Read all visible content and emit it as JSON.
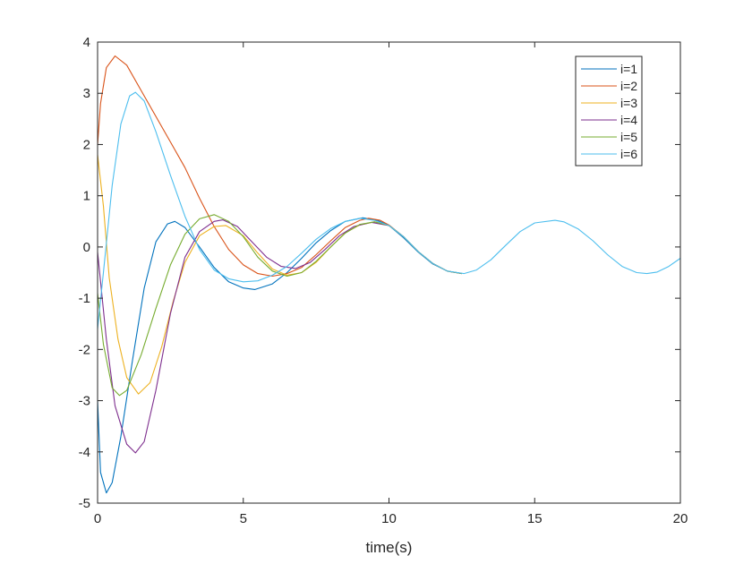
{
  "chart_data": {
    "type": "line",
    "title": "",
    "xlabel": "time(s)",
    "ylabel": "",
    "xlim": [
      0,
      20
    ],
    "ylim": [
      -5,
      4
    ],
    "xticks": [
      0,
      5,
      10,
      15,
      20
    ],
    "yticks": [
      -5,
      -4,
      -3,
      -2,
      -1,
      0,
      1,
      2,
      3,
      4
    ],
    "grid": false,
    "legend_position": "top-right",
    "series": [
      {
        "name": "i=1",
        "color": "#0072BD",
        "points": [
          [
            0,
            -3.0
          ],
          [
            0.1,
            -4.4
          ],
          [
            0.3,
            -4.8
          ],
          [
            0.5,
            -4.6
          ],
          [
            0.8,
            -3.7
          ],
          [
            1.2,
            -2.2
          ],
          [
            1.6,
            -0.8
          ],
          [
            2.0,
            0.1
          ],
          [
            2.4,
            0.45
          ],
          [
            2.65,
            0.5
          ],
          [
            3.0,
            0.38
          ],
          [
            3.5,
            0.0
          ],
          [
            4.0,
            -0.4
          ],
          [
            4.5,
            -0.68
          ],
          [
            5.0,
            -0.8
          ],
          [
            5.4,
            -0.83
          ],
          [
            6.0,
            -0.72
          ],
          [
            6.5,
            -0.5
          ],
          [
            7.0,
            -0.22
          ],
          [
            7.5,
            0.08
          ],
          [
            8.0,
            0.32
          ],
          [
            8.5,
            0.5
          ],
          [
            9.1,
            0.57
          ],
          [
            9.6,
            0.52
          ],
          [
            10.0,
            0.42
          ],
          [
            10.5,
            0.18
          ],
          [
            11.0,
            -0.1
          ],
          [
            11.5,
            -0.33
          ],
          [
            12.0,
            -0.47
          ],
          [
            12.5,
            -0.52
          ]
        ]
      },
      {
        "name": "i=2",
        "color": "#D95319",
        "points": [
          [
            0,
            2.0
          ],
          [
            0.1,
            2.8
          ],
          [
            0.3,
            3.5
          ],
          [
            0.6,
            3.73
          ],
          [
            1.0,
            3.55
          ],
          [
            1.5,
            3.05
          ],
          [
            2.0,
            2.55
          ],
          [
            2.5,
            2.05
          ],
          [
            3.0,
            1.55
          ],
          [
            3.5,
            0.95
          ],
          [
            4.0,
            0.4
          ],
          [
            4.5,
            -0.05
          ],
          [
            5.0,
            -0.35
          ],
          [
            5.5,
            -0.52
          ],
          [
            6.0,
            -0.57
          ],
          [
            6.5,
            -0.52
          ],
          [
            7.0,
            -0.4
          ],
          [
            7.5,
            -0.15
          ],
          [
            8.0,
            0.12
          ],
          [
            8.5,
            0.38
          ],
          [
            9.0,
            0.52
          ],
          [
            9.3,
            0.56
          ],
          [
            9.7,
            0.52
          ],
          [
            10.0,
            0.43
          ],
          [
            10.5,
            0.2
          ],
          [
            11.0,
            -0.09
          ],
          [
            11.5,
            -0.32
          ],
          [
            12.0,
            -0.47
          ],
          [
            12.5,
            -0.52
          ]
        ]
      },
      {
        "name": "i=3",
        "color": "#EDB120",
        "points": [
          [
            0,
            1.8
          ],
          [
            0.2,
            0.8
          ],
          [
            0.4,
            -0.6
          ],
          [
            0.7,
            -1.8
          ],
          [
            1.0,
            -2.55
          ],
          [
            1.4,
            -2.87
          ],
          [
            1.8,
            -2.65
          ],
          [
            2.2,
            -1.95
          ],
          [
            2.6,
            -1.05
          ],
          [
            3.0,
            -0.3
          ],
          [
            3.5,
            0.22
          ],
          [
            4.0,
            0.4
          ],
          [
            4.4,
            0.42
          ],
          [
            5.0,
            0.22
          ],
          [
            5.5,
            -0.12
          ],
          [
            6.0,
            -0.43
          ],
          [
            6.5,
            -0.55
          ],
          [
            7.0,
            -0.5
          ],
          [
            7.5,
            -0.3
          ],
          [
            8.0,
            0.0
          ],
          [
            8.5,
            0.28
          ],
          [
            9.0,
            0.43
          ],
          [
            9.5,
            0.49
          ],
          [
            10.0,
            0.42
          ],
          [
            10.5,
            0.2
          ],
          [
            11.0,
            -0.09
          ],
          [
            11.5,
            -0.32
          ],
          [
            12.0,
            -0.47
          ],
          [
            12.5,
            -0.52
          ]
        ]
      },
      {
        "name": "i=4",
        "color": "#7E2F8E",
        "points": [
          [
            0,
            -0.1
          ],
          [
            0.3,
            -1.8
          ],
          [
            0.6,
            -3.1
          ],
          [
            1.0,
            -3.85
          ],
          [
            1.3,
            -4.02
          ],
          [
            1.6,
            -3.8
          ],
          [
            2.0,
            -2.8
          ],
          [
            2.5,
            -1.3
          ],
          [
            3.0,
            -0.2
          ],
          [
            3.5,
            0.3
          ],
          [
            4.0,
            0.5
          ],
          [
            4.3,
            0.53
          ],
          [
            4.8,
            0.4
          ],
          [
            5.3,
            0.1
          ],
          [
            5.8,
            -0.2
          ],
          [
            6.3,
            -0.38
          ],
          [
            6.8,
            -0.42
          ],
          [
            7.3,
            -0.3
          ],
          [
            7.8,
            -0.05
          ],
          [
            8.3,
            0.22
          ],
          [
            8.8,
            0.4
          ],
          [
            9.4,
            0.48
          ],
          [
            10.0,
            0.42
          ],
          [
            10.5,
            0.2
          ],
          [
            11.0,
            -0.09
          ],
          [
            11.5,
            -0.32
          ],
          [
            12.0,
            -0.47
          ],
          [
            12.5,
            -0.52
          ]
        ]
      },
      {
        "name": "i=5",
        "color": "#77AC30",
        "points": [
          [
            0,
            -0.9
          ],
          [
            0.2,
            -1.9
          ],
          [
            0.5,
            -2.75
          ],
          [
            0.75,
            -2.9
          ],
          [
            1.0,
            -2.8
          ],
          [
            1.5,
            -2.1
          ],
          [
            2.0,
            -1.2
          ],
          [
            2.5,
            -0.35
          ],
          [
            3.0,
            0.25
          ],
          [
            3.5,
            0.55
          ],
          [
            4.0,
            0.63
          ],
          [
            4.5,
            0.5
          ],
          [
            5.0,
            0.2
          ],
          [
            5.5,
            -0.2
          ],
          [
            6.0,
            -0.47
          ],
          [
            6.5,
            -0.57
          ],
          [
            7.0,
            -0.5
          ],
          [
            7.5,
            -0.28
          ],
          [
            8.0,
            0.0
          ],
          [
            8.5,
            0.27
          ],
          [
            9.0,
            0.44
          ],
          [
            9.5,
            0.49
          ],
          [
            10.0,
            0.42
          ],
          [
            10.5,
            0.2
          ],
          [
            11.0,
            -0.09
          ],
          [
            11.5,
            -0.32
          ],
          [
            12.0,
            -0.47
          ],
          [
            12.5,
            -0.52
          ]
        ]
      },
      {
        "name": "i=6",
        "color": "#4DBEEE",
        "points": [
          [
            0,
            -1.6
          ],
          [
            0.2,
            -0.5
          ],
          [
            0.5,
            1.2
          ],
          [
            0.8,
            2.4
          ],
          [
            1.1,
            2.95
          ],
          [
            1.3,
            3.02
          ],
          [
            1.6,
            2.85
          ],
          [
            2.0,
            2.25
          ],
          [
            2.5,
            1.4
          ],
          [
            3.0,
            0.6
          ],
          [
            3.5,
            -0.05
          ],
          [
            4.0,
            -0.45
          ],
          [
            4.5,
            -0.62
          ],
          [
            5.0,
            -0.68
          ],
          [
            5.5,
            -0.66
          ],
          [
            6.0,
            -0.55
          ],
          [
            6.5,
            -0.38
          ],
          [
            7.0,
            -0.12
          ],
          [
            7.5,
            0.15
          ],
          [
            8.0,
            0.36
          ],
          [
            8.5,
            0.5
          ],
          [
            9.0,
            0.56
          ],
          [
            9.5,
            0.52
          ],
          [
            10.0,
            0.42
          ],
          [
            10.5,
            0.2
          ],
          [
            11.0,
            -0.09
          ],
          [
            11.5,
            -0.32
          ],
          [
            12.0,
            -0.47
          ],
          [
            12.57,
            -0.52
          ],
          [
            13.0,
            -0.45
          ],
          [
            13.5,
            -0.25
          ],
          [
            14.0,
            0.03
          ],
          [
            14.5,
            0.3
          ],
          [
            15.0,
            0.47
          ],
          [
            15.7,
            0.52
          ],
          [
            16.0,
            0.49
          ],
          [
            16.5,
            0.35
          ],
          [
            17.0,
            0.12
          ],
          [
            17.5,
            -0.15
          ],
          [
            18.0,
            -0.38
          ],
          [
            18.5,
            -0.5
          ],
          [
            18.85,
            -0.52
          ],
          [
            19.2,
            -0.49
          ],
          [
            19.6,
            -0.38
          ],
          [
            20.0,
            -0.22
          ]
        ]
      }
    ]
  }
}
